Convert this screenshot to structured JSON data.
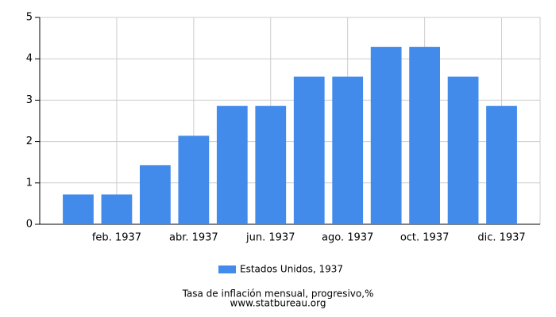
{
  "chart_data": {
    "type": "bar",
    "title": "Tasa de inflación mensual, progresivo,%",
    "source": "www.statbureau.org",
    "categories": [
      null,
      "feb. 1937",
      null,
      "abr. 1937",
      null,
      "jun. 1937",
      null,
      "ago. 1937",
      null,
      "oct. 1937",
      null,
      "dic. 1937"
    ],
    "series": [
      {
        "name": "Estados Unidos, 1937",
        "color": "#428bea",
        "values": [
          0.72,
          0.72,
          1.43,
          2.14,
          2.86,
          2.86,
          3.57,
          3.57,
          4.29,
          4.29,
          3.57,
          2.86
        ]
      }
    ],
    "ylim": [
      0,
      5
    ],
    "yticks": [
      0,
      1,
      2,
      3,
      4,
      5
    ],
    "grid": true
  }
}
